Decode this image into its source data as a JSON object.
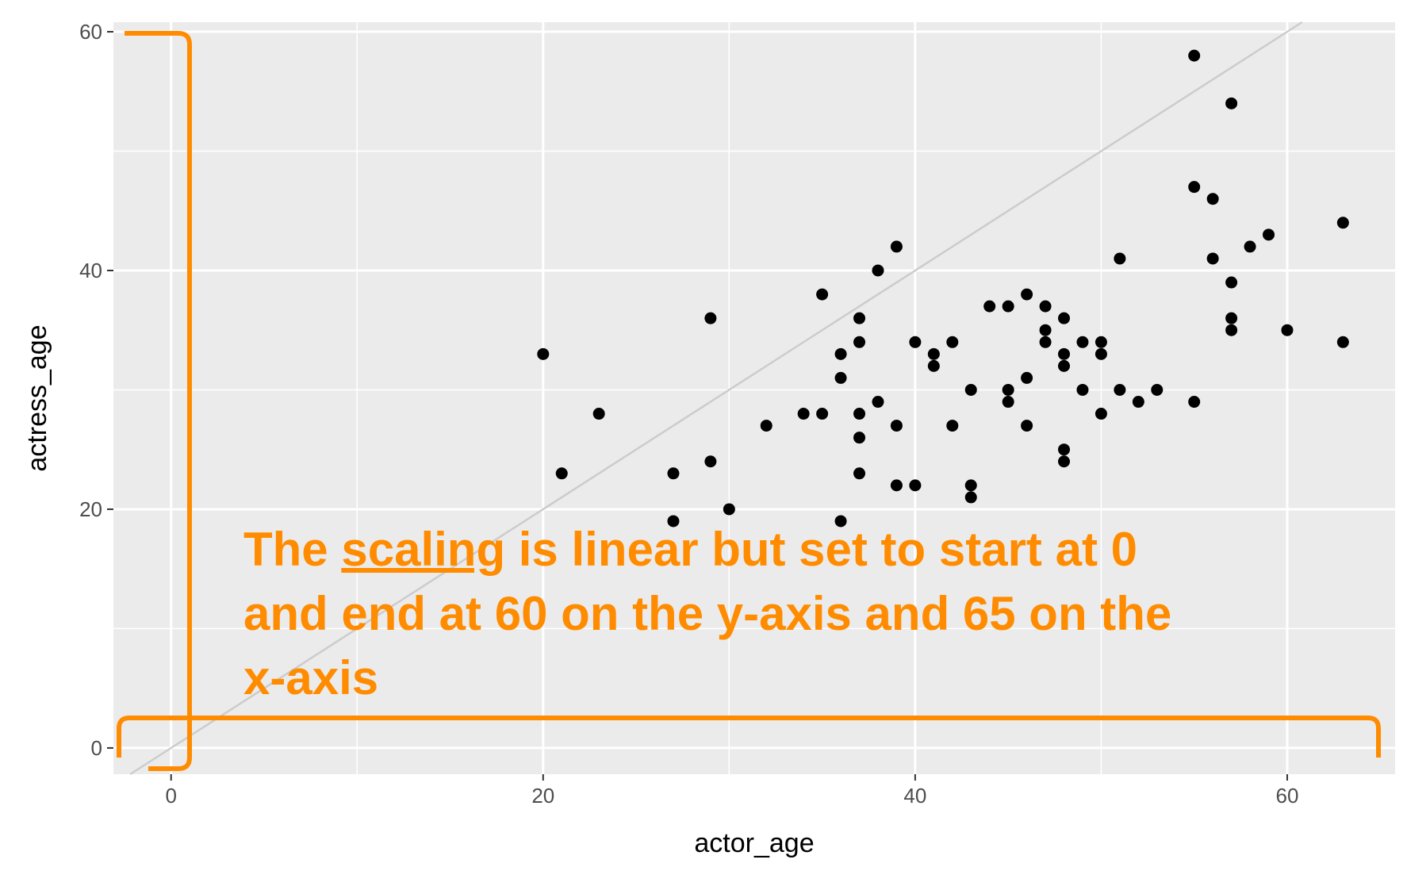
{
  "chart_data": {
    "type": "scatter",
    "xlabel": "actor_age",
    "ylabel": "actress_age",
    "xlim": [
      -3.1,
      65.8
    ],
    "ylim": [
      -2.2,
      60.8
    ],
    "x_ticks": [
      0,
      20,
      40,
      60
    ],
    "y_ticks": [
      0,
      20,
      40,
      60
    ],
    "x_minor_ticks": [
      10,
      30,
      50
    ],
    "y_minor_ticks": [
      10,
      30,
      50
    ],
    "grid": true,
    "reference_line": {
      "type": "identity",
      "slope": 1,
      "intercept": 0
    },
    "points": [
      {
        "x": 20,
        "y": 33
      },
      {
        "x": 21,
        "y": 23
      },
      {
        "x": 23,
        "y": 28
      },
      {
        "x": 27,
        "y": 23
      },
      {
        "x": 27,
        "y": 19
      },
      {
        "x": 29,
        "y": 36
      },
      {
        "x": 29,
        "y": 24
      },
      {
        "x": 30,
        "y": 20
      },
      {
        "x": 32,
        "y": 27
      },
      {
        "x": 34,
        "y": 28
      },
      {
        "x": 35,
        "y": 38
      },
      {
        "x": 35,
        "y": 28
      },
      {
        "x": 36,
        "y": 33
      },
      {
        "x": 36,
        "y": 31
      },
      {
        "x": 36,
        "y": 19
      },
      {
        "x": 37,
        "y": 36
      },
      {
        "x": 37,
        "y": 34
      },
      {
        "x": 37,
        "y": 28
      },
      {
        "x": 37,
        "y": 26
      },
      {
        "x": 37,
        "y": 23
      },
      {
        "x": 38,
        "y": 40
      },
      {
        "x": 38,
        "y": 29
      },
      {
        "x": 39,
        "y": 42
      },
      {
        "x": 39,
        "y": 27
      },
      {
        "x": 39,
        "y": 22
      },
      {
        "x": 40,
        "y": 34
      },
      {
        "x": 40,
        "y": 22
      },
      {
        "x": 41,
        "y": 33
      },
      {
        "x": 41,
        "y": 32
      },
      {
        "x": 42,
        "y": 34
      },
      {
        "x": 42,
        "y": 27
      },
      {
        "x": 43,
        "y": 30
      },
      {
        "x": 43,
        "y": 22
      },
      {
        "x": 43,
        "y": 21
      },
      {
        "x": 44,
        "y": 37
      },
      {
        "x": 45,
        "y": 37
      },
      {
        "x": 45,
        "y": 30
      },
      {
        "x": 45,
        "y": 29
      },
      {
        "x": 46,
        "y": 38
      },
      {
        "x": 46,
        "y": 31
      },
      {
        "x": 46,
        "y": 27
      },
      {
        "x": 47,
        "y": 37
      },
      {
        "x": 47,
        "y": 35
      },
      {
        "x": 47,
        "y": 34
      },
      {
        "x": 48,
        "y": 36
      },
      {
        "x": 48,
        "y": 33
      },
      {
        "x": 48,
        "y": 32
      },
      {
        "x": 48,
        "y": 25
      },
      {
        "x": 48,
        "y": 24
      },
      {
        "x": 49,
        "y": 34
      },
      {
        "x": 49,
        "y": 30
      },
      {
        "x": 50,
        "y": 34
      },
      {
        "x": 50,
        "y": 33
      },
      {
        "x": 50,
        "y": 28
      },
      {
        "x": 51,
        "y": 41
      },
      {
        "x": 51,
        "y": 30
      },
      {
        "x": 52,
        "y": 29
      },
      {
        "x": 53,
        "y": 30
      },
      {
        "x": 55,
        "y": 58
      },
      {
        "x": 55,
        "y": 47
      },
      {
        "x": 55,
        "y": 29
      },
      {
        "x": 56,
        "y": 46
      },
      {
        "x": 56,
        "y": 41
      },
      {
        "x": 57,
        "y": 54
      },
      {
        "x": 57,
        "y": 39
      },
      {
        "x": 57,
        "y": 36
      },
      {
        "x": 57,
        "y": 35
      },
      {
        "x": 58,
        "y": 42
      },
      {
        "x": 59,
        "y": 43
      },
      {
        "x": 60,
        "y": 35
      },
      {
        "x": 63,
        "y": 44
      },
      {
        "x": 63,
        "y": 34
      }
    ],
    "annotation": {
      "lines": [
        [
          "The ",
          "scaling",
          " is linear but set to start at 0"
        ],
        [
          "and end at 60 on the y-axis and 65 on the"
        ],
        [
          "x-axis"
        ]
      ],
      "underlined": "scaling",
      "color": "#ff8c00"
    },
    "colors": {
      "panel": "#ebebeb",
      "grid": "#ffffff",
      "points": "#000000",
      "reference_line": "#cccccc",
      "brackets": "#ff8c00"
    }
  }
}
